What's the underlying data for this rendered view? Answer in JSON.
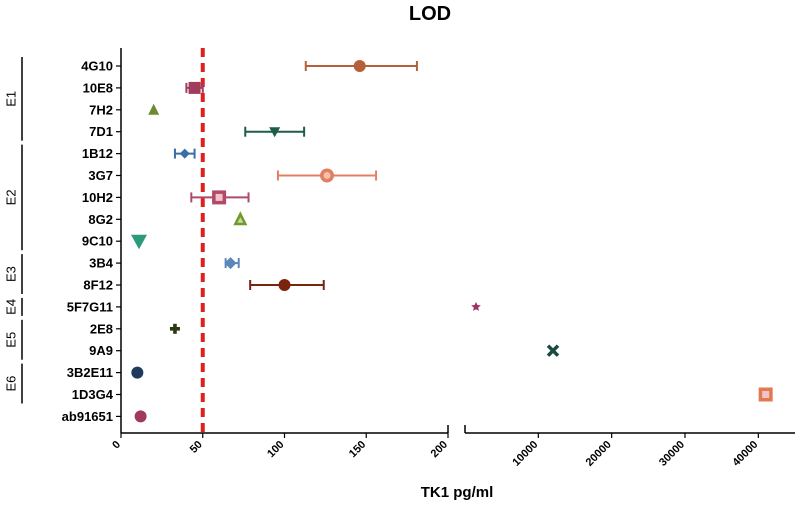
{
  "chart_data": {
    "type": "scatter",
    "title": "LOD",
    "xlabel": "TK1 pg/ml",
    "ylabel": "",
    "x_axis": {
      "broken": true,
      "segment1": {
        "range": [
          0,
          200
        ],
        "ticks": [
          0,
          50,
          100,
          150,
          200
        ]
      },
      "segment2": {
        "range": [
          0,
          45000
        ],
        "ticks": [
          10000,
          20000,
          30000,
          40000
        ]
      }
    },
    "reference_line": {
      "x": 50,
      "color": "#e02020",
      "style": "dashed"
    },
    "groups": [
      {
        "label": "E1",
        "from": "4G10",
        "to": "7D1"
      },
      {
        "label": "E2",
        "from": "1B12",
        "to": "9C10"
      },
      {
        "label": "E3",
        "from": "3B4",
        "to": "8F12"
      },
      {
        "label": "E4",
        "from": "5F7G11",
        "to": "5F7G11"
      },
      {
        "label": "E5",
        "from": "2E8",
        "to": "9A9"
      },
      {
        "label": "E6",
        "from": "3B2E11",
        "to": "1D3G4"
      }
    ],
    "points": [
      {
        "label": "4G10",
        "x": 146,
        "err_low": 113,
        "err_high": 181,
        "seg": 1,
        "marker": "circle",
        "color": "#b5603a"
      },
      {
        "label": "10E8",
        "x": 45,
        "err_low": 40,
        "err_high": 50,
        "seg": 1,
        "marker": "square",
        "color": "#a13d5c"
      },
      {
        "label": "7H2",
        "x": 20,
        "seg": 1,
        "marker": "triangle-up",
        "color": "#6e8a2e"
      },
      {
        "label": "7D1",
        "x": 94,
        "err_low": 76,
        "err_high": 112,
        "seg": 1,
        "marker": "triangle-down",
        "color": "#1f5c4a"
      },
      {
        "label": "1B12",
        "x": 39,
        "err_low": 33,
        "err_high": 45,
        "seg": 1,
        "marker": "diamond",
        "color": "#3a6ea5"
      },
      {
        "label": "3G7",
        "x": 126,
        "err_low": 96,
        "err_high": 156,
        "seg": 1,
        "marker": "circle-ring",
        "color": "#e08060"
      },
      {
        "label": "10H2",
        "x": 60,
        "err_low": 43,
        "err_high": 78,
        "seg": 1,
        "marker": "square-ring",
        "color": "#b04a6a"
      },
      {
        "label": "8G2",
        "x": 73,
        "seg": 1,
        "marker": "triangle-ring",
        "color": "#6e9a2e"
      },
      {
        "label": "9C10",
        "x": 11,
        "seg": 1,
        "marker": "triangle-down",
        "color": "#2a9a7a"
      },
      {
        "label": "3B4",
        "x": 67,
        "err_low": 64,
        "err_high": 72,
        "seg": 1,
        "marker": "diamond",
        "color": "#5a86b8"
      },
      {
        "label": "8F12",
        "x": 100,
        "err_low": 79,
        "err_high": 124,
        "seg": 1,
        "marker": "circle",
        "color": "#7a2410"
      },
      {
        "label": "5F7G11",
        "x": 1500,
        "seg": 2,
        "marker": "star",
        "color": "#a0306a"
      },
      {
        "label": "2E8",
        "x": 33,
        "seg": 1,
        "marker": "plus",
        "color": "#2a3a10"
      },
      {
        "label": "9A9",
        "x": 12000,
        "seg": 2,
        "marker": "cross",
        "color": "#1a4a40"
      },
      {
        "label": "3B2E11",
        "x": 10,
        "seg": 1,
        "marker": "circle",
        "color": "#1f3a5a"
      },
      {
        "label": "1D3G4",
        "x": 41000,
        "seg": 2,
        "marker": "square-ring",
        "color": "#e07a50"
      },
      {
        "label": "ab91651",
        "x": 12,
        "seg": 1,
        "marker": "circle",
        "color": "#a03a5a"
      }
    ]
  }
}
